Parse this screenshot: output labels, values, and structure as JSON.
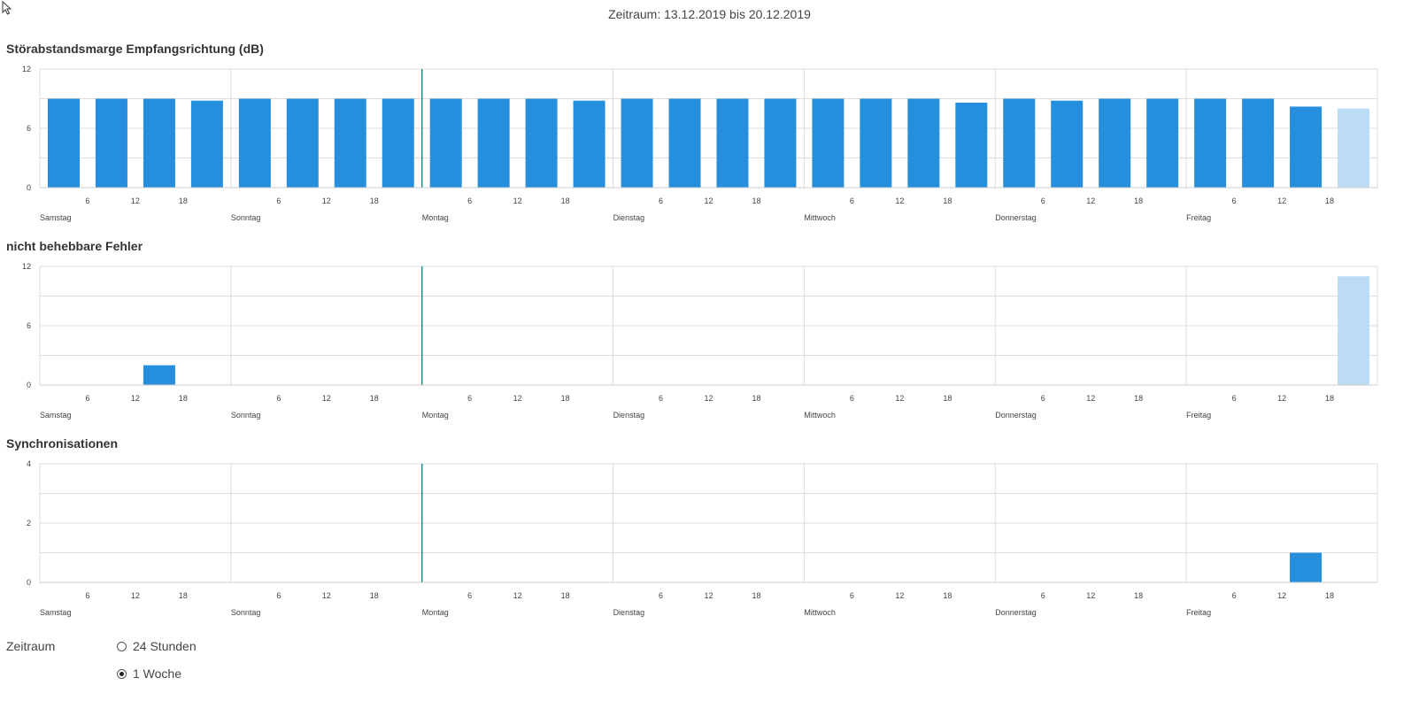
{
  "header": {
    "period_text": "Zeitraum: 13.12.2019 bis 20.12.2019"
  },
  "axis": {
    "days": [
      "Samstag",
      "Sonntag",
      "Montag",
      "Dienstag",
      "Mittwoch",
      "Donnerstag",
      "Freitag"
    ],
    "hour_ticks": [
      "6",
      "12",
      "18"
    ]
  },
  "colors": {
    "bar": "#268fdd",
    "bar_partial": "#bcdcf3",
    "grid": "#dddddd",
    "axis": "#cccccc",
    "marker": "#1f8a8a"
  },
  "charts": [
    {
      "id": "snr",
      "title": "Störabstandsmarge Empfangsrichtung (dB)",
      "y_ticks": [
        "0",
        "6",
        "12"
      ],
      "chart_data": {
        "type": "bar",
        "title": "Störabstandsmarge Empfangsrichtung (dB)",
        "ylim": [
          0,
          12
        ],
        "values": [
          9,
          9,
          9,
          8.8,
          9,
          9,
          9,
          9,
          9,
          9,
          9,
          8.8,
          9,
          9,
          9,
          9,
          9,
          9,
          9,
          8.6,
          9,
          8.8,
          9,
          9,
          9,
          9,
          8.2,
          8
        ],
        "partial": [
          27
        ]
      }
    },
    {
      "id": "errors",
      "title": "nicht behebbare Fehler",
      "y_ticks": [
        "0",
        "6",
        "12"
      ],
      "chart_data": {
        "type": "bar",
        "title": "nicht behebbare Fehler",
        "ylim": [
          0,
          12
        ],
        "values": [
          0,
          0,
          2,
          0,
          0,
          0,
          0,
          0,
          0,
          0,
          0,
          0,
          0,
          0,
          0,
          0,
          0,
          0,
          0,
          0,
          0,
          0,
          0,
          0,
          0,
          0,
          0,
          11
        ],
        "partial": [
          27
        ]
      }
    },
    {
      "id": "sync",
      "title": "Synchronisationen",
      "y_ticks": [
        "0",
        "2",
        "4"
      ],
      "chart_data": {
        "type": "bar",
        "title": "Synchronisationen",
        "ylim": [
          0,
          4
        ],
        "values": [
          0,
          0,
          0,
          0,
          0,
          0,
          0,
          0,
          0,
          0,
          0,
          0,
          0,
          0,
          0,
          0,
          0,
          0,
          0,
          0,
          0,
          0,
          0,
          0,
          0,
          0,
          1,
          0
        ],
        "partial": []
      }
    }
  ],
  "controls": {
    "label": "Zeitraum",
    "options": [
      {
        "label": "24 Stunden",
        "checked": false
      },
      {
        "label": "1 Woche",
        "checked": true
      }
    ]
  }
}
